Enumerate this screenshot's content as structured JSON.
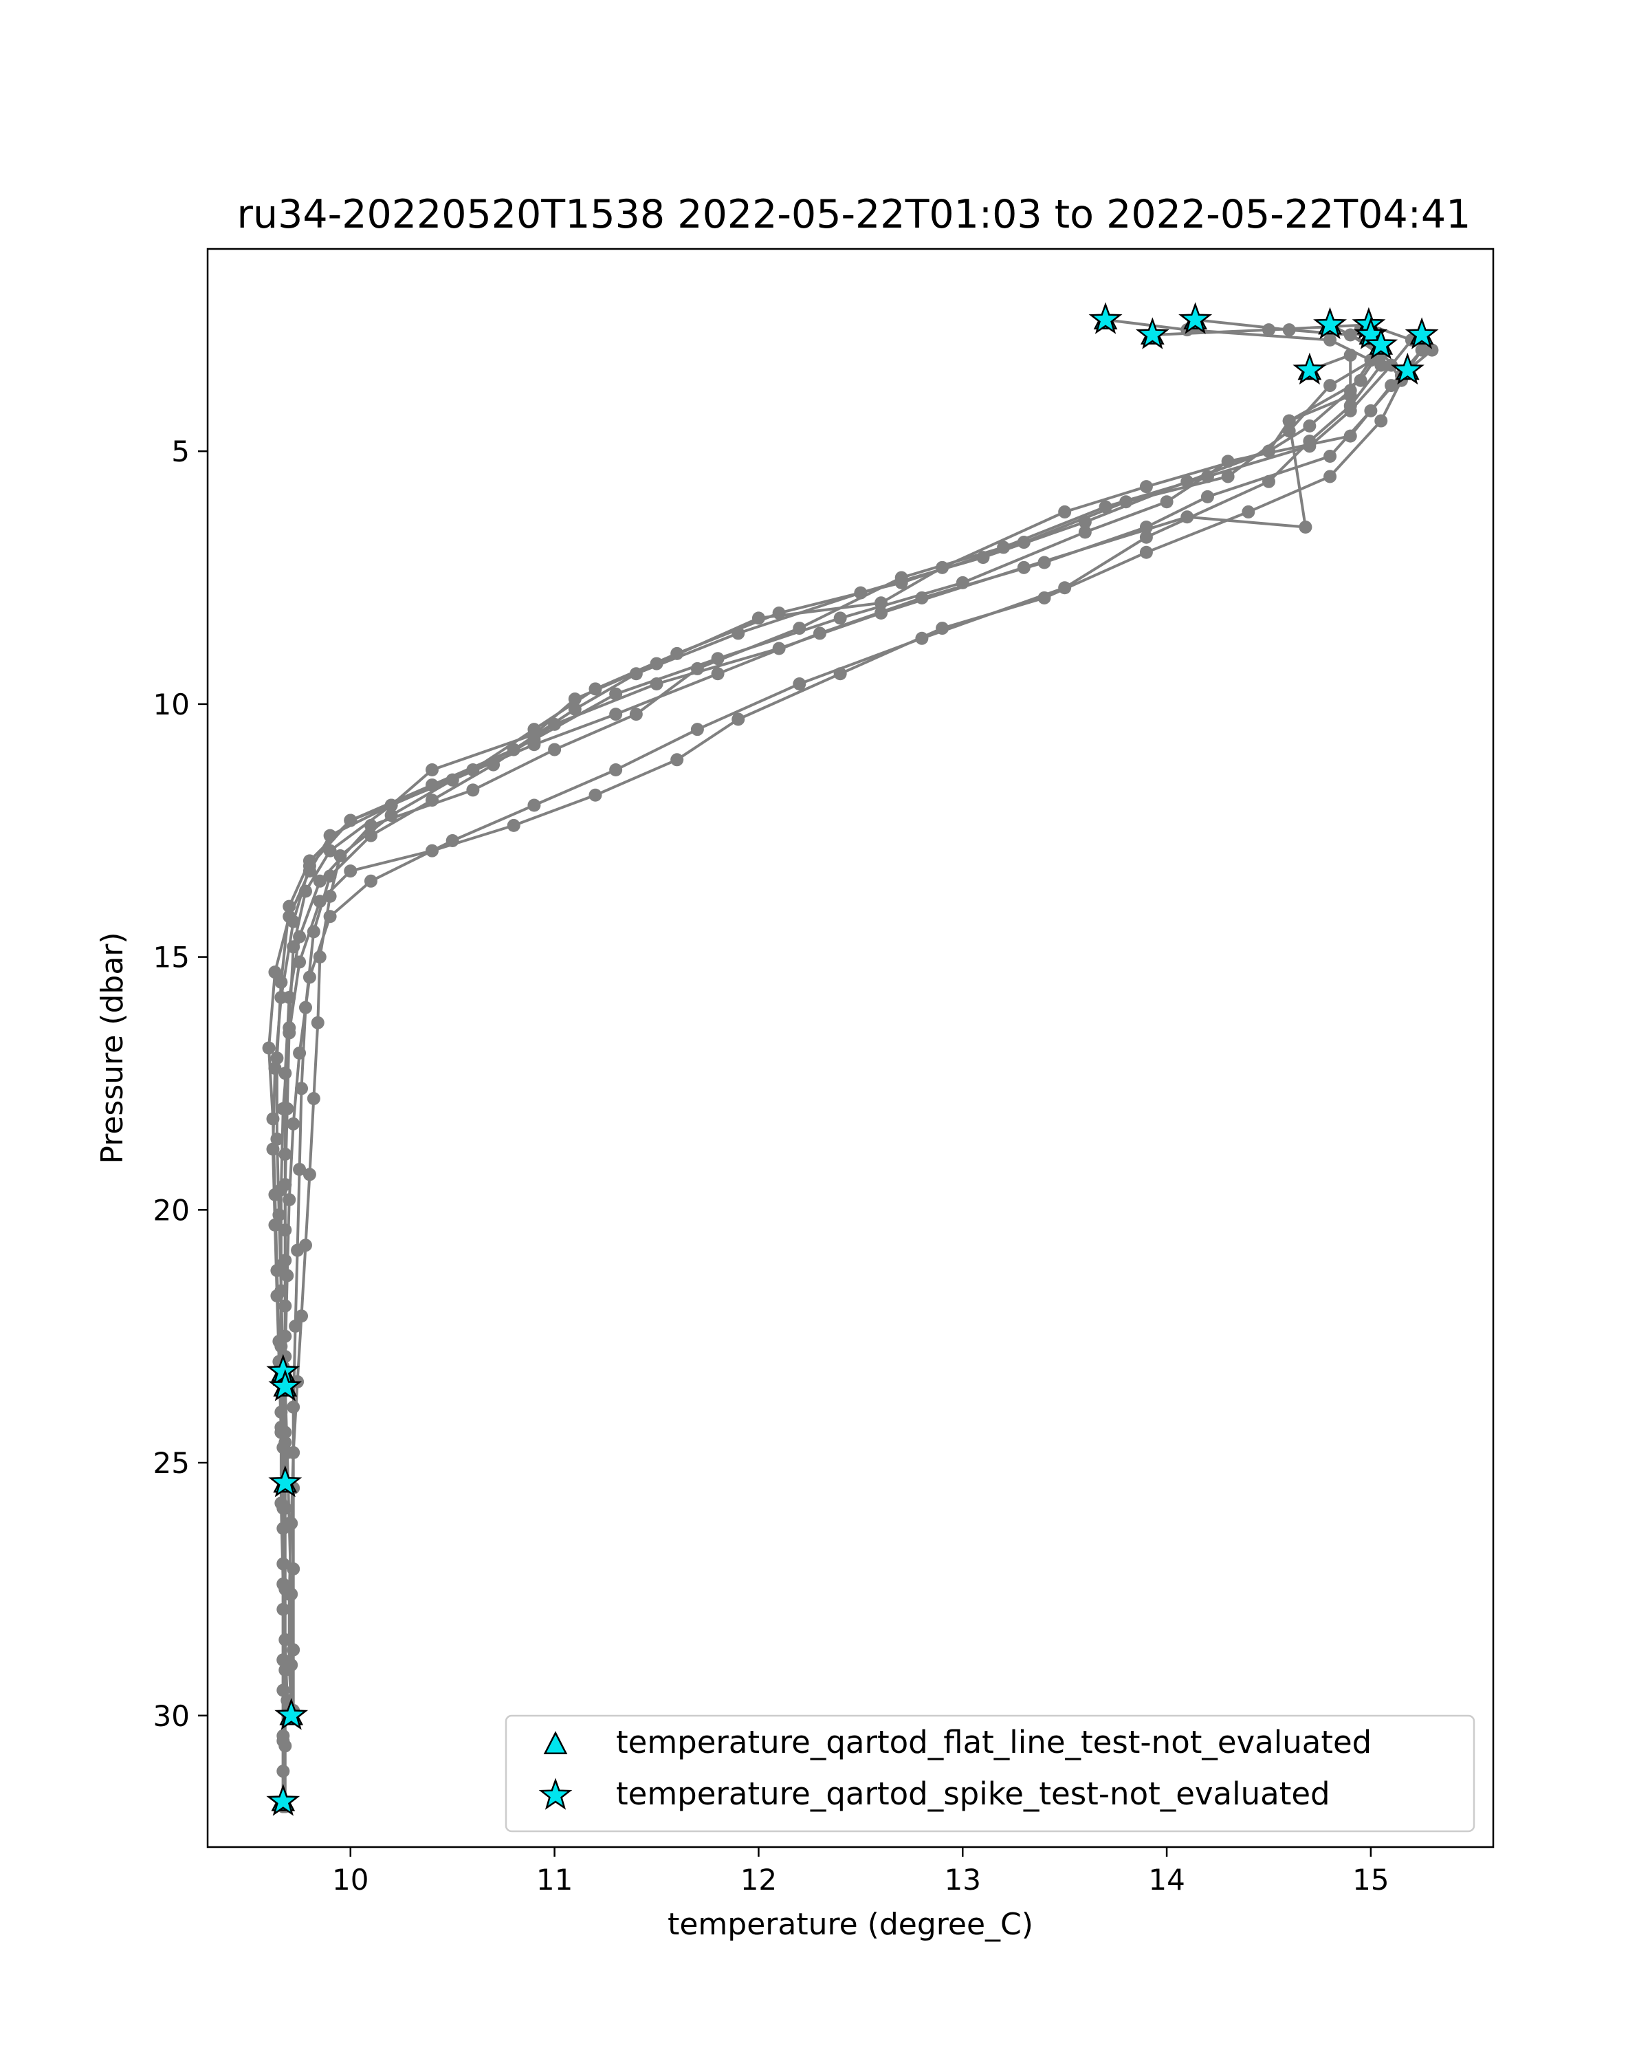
{
  "chart_data": {
    "type": "scatter",
    "title": "ru34-20220520T1538 2022-05-22T01:03 to 2022-05-22T04:41",
    "xlabel": "temperature (degree_C)",
    "ylabel": "Pressure (dbar)",
    "xlim": [
      9.3,
      15.6
    ],
    "ylim": [
      32.6,
      1.0
    ],
    "y_inverted": true,
    "x_ticks": [
      10,
      11,
      12,
      13,
      14,
      15
    ],
    "y_ticks": [
      5,
      10,
      15,
      20,
      25,
      30
    ],
    "grid": false,
    "legend_position": "lower-right",
    "profile_color": "#808080",
    "flag_color": "#00e5ee",
    "profiles": [
      {
        "points": [
          [
            13.7,
            2.4
          ],
          [
            14.1,
            2.6
          ],
          [
            14.8,
            2.8
          ],
          [
            15.0,
            3.2
          ],
          [
            14.9,
            3.8
          ],
          [
            14.7,
            4.5
          ],
          [
            14.5,
            5.0
          ],
          [
            14.1,
            5.6
          ],
          [
            13.6,
            6.4
          ],
          [
            13.1,
            7.1
          ],
          [
            12.5,
            7.8
          ],
          [
            11.9,
            8.6
          ],
          [
            11.4,
            9.4
          ],
          [
            11.1,
            10.1
          ],
          [
            10.8,
            10.9
          ],
          [
            10.4,
            11.6
          ],
          [
            10.0,
            12.3
          ],
          [
            9.8,
            13.1
          ],
          [
            9.7,
            14.0
          ],
          [
            9.66,
            15.5
          ],
          [
            9.64,
            17.0
          ],
          [
            9.64,
            18.6
          ],
          [
            9.65,
            20.1
          ],
          [
            9.66,
            21.6
          ],
          [
            9.67,
            23.1
          ],
          [
            9.67,
            24.7
          ],
          [
            9.67,
            26.3
          ],
          [
            9.67,
            27.9
          ],
          [
            9.67,
            29.5
          ],
          [
            9.67,
            31.1
          ],
          [
            9.67,
            31.7
          ]
        ]
      },
      {
        "points": [
          [
            14.8,
            2.5
          ],
          [
            15.05,
            3.0
          ],
          [
            14.95,
            3.6
          ],
          [
            14.6,
            4.4
          ],
          [
            14.5,
            5.0
          ],
          [
            13.9,
            5.7
          ],
          [
            13.5,
            6.2
          ],
          [
            12.9,
            7.3
          ],
          [
            12.6,
            8.0
          ],
          [
            12.0,
            8.3
          ],
          [
            11.5,
            9.2
          ],
          [
            11.1,
            9.9
          ],
          [
            10.9,
            10.6
          ],
          [
            10.4,
            11.3
          ],
          [
            10.2,
            12.0
          ],
          [
            9.9,
            12.6
          ],
          [
            9.8,
            13.3
          ],
          [
            9.7,
            14.2
          ],
          [
            9.63,
            15.3
          ],
          [
            9.6,
            16.8
          ],
          [
            9.62,
            18.2
          ],
          [
            9.63,
            19.7
          ],
          [
            9.64,
            21.2
          ],
          [
            9.65,
            22.6
          ],
          [
            9.66,
            23.2
          ],
          [
            9.66,
            24.0
          ],
          [
            9.67,
            25.4
          ],
          [
            9.67,
            27.0
          ],
          [
            9.68,
            28.5
          ],
          [
            9.69,
            29.7
          ],
          [
            9.71,
            30.0
          ]
        ]
      },
      {
        "points": [
          [
            14.14,
            2.4
          ],
          [
            14.6,
            2.6
          ],
          [
            14.9,
            2.7
          ],
          [
            15.05,
            3.1
          ],
          [
            14.8,
            3.7
          ],
          [
            14.6,
            4.6
          ],
          [
            14.3,
            5.5
          ],
          [
            13.8,
            6.0
          ],
          [
            13.3,
            6.8
          ],
          [
            12.7,
            7.6
          ],
          [
            12.1,
            8.2
          ],
          [
            11.6,
            9.0
          ],
          [
            11.2,
            9.7
          ],
          [
            10.9,
            10.5
          ],
          [
            10.6,
            11.3
          ],
          [
            10.2,
            12.0
          ],
          [
            9.9,
            12.9
          ],
          [
            9.78,
            13.7
          ],
          [
            9.72,
            14.8
          ],
          [
            9.7,
            16.4
          ],
          [
            9.69,
            18.0
          ],
          [
            9.68,
            19.5
          ],
          [
            9.68,
            21.0
          ],
          [
            9.68,
            22.5
          ],
          [
            9.68,
            23.5
          ],
          [
            9.69,
            24.8
          ],
          [
            9.7,
            26.2
          ],
          [
            9.71,
            27.6
          ],
          [
            9.71,
            29.0
          ],
          [
            9.71,
            30.0
          ]
        ]
      },
      {
        "points": [
          [
            13.93,
            2.7
          ],
          [
            14.5,
            2.6
          ],
          [
            14.99,
            2.5
          ],
          [
            15.2,
            2.8
          ],
          [
            15.1,
            3.3
          ],
          [
            14.9,
            4.2
          ],
          [
            14.7,
            4.9
          ],
          [
            14.2,
            5.5
          ],
          [
            13.7,
            6.1
          ],
          [
            13.2,
            6.9
          ],
          [
            12.7,
            7.5
          ],
          [
            12.2,
            8.5
          ],
          [
            11.7,
            9.3
          ],
          [
            11.4,
            10.2
          ],
          [
            11.0,
            10.9
          ],
          [
            10.6,
            11.7
          ],
          [
            10.1,
            12.4
          ],
          [
            9.85,
            13.5
          ],
          [
            9.75,
            14.6
          ],
          [
            9.7,
            15.8
          ],
          [
            9.68,
            17.3
          ],
          [
            9.68,
            18.9
          ],
          [
            9.68,
            20.4
          ],
          [
            9.68,
            21.9
          ],
          [
            9.68,
            23.3
          ],
          [
            9.68,
            24.6
          ],
          [
            9.69,
            25.4
          ]
        ]
      },
      {
        "points": [
          [
            15.25,
            2.7
          ],
          [
            15.3,
            3.0
          ],
          [
            15.15,
            3.5
          ],
          [
            15.0,
            4.2
          ],
          [
            14.8,
            5.1
          ],
          [
            14.2,
            5.9
          ],
          [
            13.9,
            6.5
          ],
          [
            13.4,
            7.2
          ],
          [
            12.8,
            7.9
          ],
          [
            12.3,
            8.6
          ],
          [
            11.8,
            9.4
          ],
          [
            11.3,
            10.2
          ],
          [
            10.9,
            10.8
          ],
          [
            10.5,
            11.5
          ],
          [
            10.2,
            12.2
          ],
          [
            9.95,
            13.0
          ],
          [
            9.9,
            13.8
          ],
          [
            9.85,
            15.0
          ],
          [
            9.84,
            16.3
          ],
          [
            9.82,
            17.8
          ],
          [
            9.8,
            19.3
          ],
          [
            9.78,
            20.7
          ],
          [
            9.76,
            22.1
          ],
          [
            9.74,
            23.4
          ],
          [
            9.72,
            24.8
          ],
          [
            9.71,
            26.2
          ],
          [
            9.7,
            27.6
          ],
          [
            9.7,
            29.0
          ],
          [
            9.71,
            29.9
          ]
        ]
      },
      {
        "points": [
          [
            15.18,
            3.4
          ],
          [
            15.25,
            3.0
          ],
          [
            15.1,
            3.7
          ],
          [
            14.9,
            4.7
          ],
          [
            14.3,
            5.2
          ],
          [
            14.0,
            6.0
          ],
          [
            13.6,
            6.6
          ],
          [
            13.0,
            7.6
          ],
          [
            12.4,
            8.3
          ],
          [
            11.8,
            9.1
          ],
          [
            11.3,
            9.8
          ],
          [
            10.9,
            10.7
          ],
          [
            10.5,
            11.5
          ],
          [
            10.0,
            12.3
          ],
          [
            9.8,
            13.2
          ],
          [
            9.72,
            14.3
          ],
          [
            9.66,
            15.8
          ],
          [
            9.63,
            17.2
          ],
          [
            9.62,
            18.8
          ],
          [
            9.63,
            20.3
          ],
          [
            9.64,
            21.7
          ],
          [
            9.65,
            23.0
          ],
          [
            9.66,
            24.4
          ],
          [
            9.67,
            25.9
          ],
          [
            9.67,
            27.4
          ],
          [
            9.67,
            28.9
          ],
          [
            9.67,
            30.4
          ],
          [
            9.67,
            31.8
          ]
        ]
      },
      {
        "points": [
          [
            14.7,
            3.4
          ],
          [
            14.9,
            3.1
          ],
          [
            14.9,
            3.9
          ],
          [
            14.6,
            4.4
          ],
          [
            14.68,
            6.5
          ],
          [
            14.1,
            6.3
          ],
          [
            13.3,
            7.3
          ],
          [
            12.6,
            8.2
          ],
          [
            12.1,
            8.9
          ],
          [
            11.5,
            9.6
          ],
          [
            11.0,
            10.4
          ],
          [
            10.7,
            11.2
          ],
          [
            10.4,
            11.9
          ],
          [
            10.1,
            12.6
          ],
          [
            9.9,
            13.4
          ],
          [
            9.82,
            14.5
          ],
          [
            9.78,
            16.0
          ],
          [
            9.76,
            17.6
          ],
          [
            9.75,
            19.2
          ],
          [
            9.74,
            20.8
          ],
          [
            9.73,
            22.3
          ],
          [
            9.72,
            23.9
          ],
          [
            9.72,
            25.5
          ],
          [
            9.72,
            27.1
          ],
          [
            9.72,
            28.7
          ],
          [
            9.72,
            29.9
          ]
        ]
      },
      {
        "points": [
          [
            15.0,
            2.7
          ],
          [
            15.15,
            3.6
          ],
          [
            15.05,
            4.4
          ],
          [
            14.8,
            5.5
          ],
          [
            14.4,
            6.2
          ],
          [
            13.9,
            7.0
          ],
          [
            13.4,
            7.9
          ],
          [
            12.9,
            8.5
          ],
          [
            12.4,
            9.4
          ],
          [
            11.9,
            10.3
          ],
          [
            11.6,
            11.1
          ],
          [
            11.2,
            11.8
          ],
          [
            10.8,
            12.4
          ],
          [
            10.4,
            12.9
          ],
          [
            10.0,
            13.3
          ],
          [
            9.85,
            13.9
          ],
          [
            9.75,
            15.1
          ],
          [
            9.7,
            16.5
          ],
          [
            9.67,
            18.0
          ],
          [
            9.66,
            19.6
          ],
          [
            9.66,
            21.1
          ],
          [
            9.66,
            22.7
          ],
          [
            9.66,
            24.3
          ],
          [
            9.66,
            25.8
          ],
          [
            9.67,
            27.4
          ],
          [
            9.67,
            28.9
          ],
          [
            9.67,
            30.5
          ],
          [
            9.67,
            31.7
          ]
        ]
      },
      {
        "points": [
          [
            14.95,
            2.6
          ],
          [
            15.05,
            3.3
          ],
          [
            14.9,
            4.1
          ],
          [
            14.7,
            4.8
          ],
          [
            14.5,
            5.6
          ],
          [
            13.9,
            6.7
          ],
          [
            13.5,
            7.7
          ],
          [
            12.8,
            8.7
          ],
          [
            12.2,
            9.6
          ],
          [
            11.7,
            10.5
          ],
          [
            11.3,
            11.3
          ],
          [
            10.9,
            12.0
          ],
          [
            10.5,
            12.7
          ],
          [
            10.1,
            13.5
          ],
          [
            9.9,
            14.2
          ],
          [
            9.8,
            15.4
          ],
          [
            9.75,
            16.9
          ],
          [
            9.72,
            18.3
          ],
          [
            9.7,
            19.8
          ],
          [
            9.69,
            21.3
          ],
          [
            9.68,
            22.9
          ],
          [
            9.68,
            24.4
          ],
          [
            9.68,
            25.9
          ],
          [
            9.68,
            27.5
          ],
          [
            9.68,
            29.1
          ],
          [
            9.68,
            30.6
          ],
          [
            9.68,
            31.8
          ]
        ]
      }
    ],
    "series": [
      {
        "name": "temperature_qartod_flat_line_test-not_evaluated",
        "marker": "triangle",
        "points": [
          [
            13.7,
            2.4
          ],
          [
            14.14,
            2.4
          ],
          [
            13.93,
            2.7
          ],
          [
            14.8,
            2.5
          ],
          [
            14.99,
            2.5
          ],
          [
            15.0,
            2.7
          ],
          [
            15.05,
            2.9
          ],
          [
            15.25,
            2.7
          ],
          [
            14.7,
            3.4
          ],
          [
            15.18,
            3.4
          ],
          [
            9.67,
            23.2
          ],
          [
            9.68,
            23.5
          ],
          [
            9.68,
            25.4
          ],
          [
            9.71,
            30.0
          ],
          [
            9.67,
            31.7
          ]
        ]
      },
      {
        "name": "temperature_qartod_spike_test-not_evaluated",
        "marker": "star",
        "points": [
          [
            13.7,
            2.4
          ],
          [
            14.14,
            2.4
          ],
          [
            13.93,
            2.7
          ],
          [
            14.8,
            2.5
          ],
          [
            14.99,
            2.5
          ],
          [
            15.0,
            2.7
          ],
          [
            15.05,
            2.9
          ],
          [
            15.25,
            2.7
          ],
          [
            14.7,
            3.4
          ],
          [
            15.18,
            3.4
          ],
          [
            9.67,
            23.2
          ],
          [
            9.68,
            23.5
          ],
          [
            9.68,
            25.4
          ],
          [
            9.71,
            30.0
          ],
          [
            9.67,
            31.7
          ]
        ]
      }
    ]
  }
}
